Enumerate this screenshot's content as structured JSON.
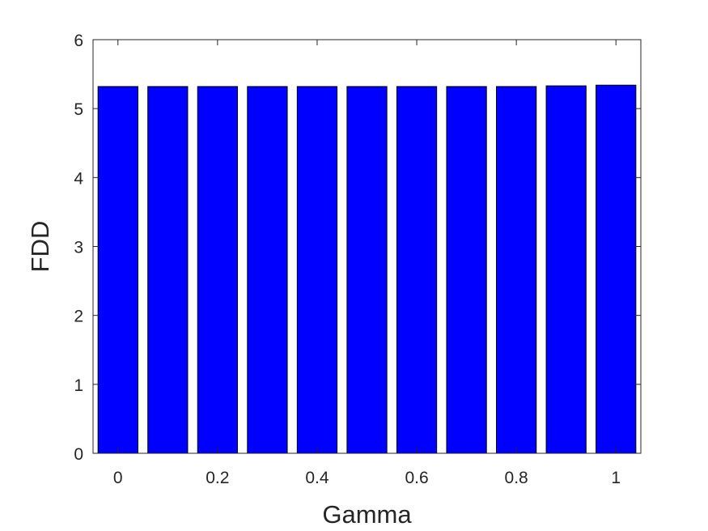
{
  "chart_data": {
    "type": "bar",
    "x": [
      0,
      0.1,
      0.2,
      0.3,
      0.4,
      0.5,
      0.6,
      0.7,
      0.8,
      0.9,
      1.0
    ],
    "values": [
      5.32,
      5.32,
      5.32,
      5.32,
      5.32,
      5.32,
      5.32,
      5.32,
      5.32,
      5.33,
      5.34
    ],
    "xlabel": "Gamma",
    "ylabel": "FDD",
    "xlim": [
      -0.05,
      1.05
    ],
    "ylim": [
      0,
      6
    ],
    "xticks": [
      0,
      0.2,
      0.4,
      0.6,
      0.8,
      1
    ],
    "xtick_labels": [
      "0",
      "0.2",
      "0.4",
      "0.6",
      "0.8",
      "1"
    ],
    "yticks": [
      0,
      1,
      2,
      3,
      4,
      5,
      6
    ],
    "ytick_labels": [
      "0",
      "1",
      "2",
      "3",
      "4",
      "5",
      "6"
    ],
    "bar_color": "#0000ff",
    "grid": false,
    "legend": "none"
  }
}
